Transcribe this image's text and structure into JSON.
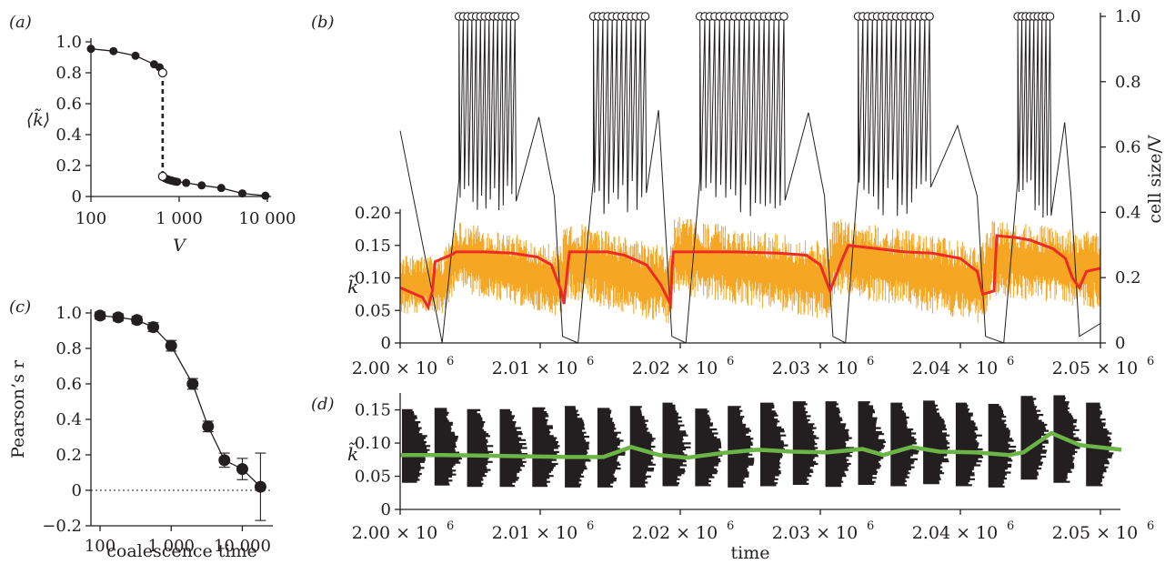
{
  "chart_data": [
    {
      "panel": "a",
      "type": "line",
      "panel_label": "(a)",
      "xlabel": "V",
      "ylabel": "⟨k̃⟩",
      "x_scale": "log",
      "xlim": [
        100,
        10000
      ],
      "ylim": [
        0,
        1.0
      ],
      "xticks": [
        "100",
        "1 000",
        "10 000"
      ],
      "yticks": [
        "0",
        "0.2",
        "0.4",
        "0.6",
        "0.8",
        "1.0"
      ],
      "upper_branch": {
        "x": [
          100,
          180,
          320,
          520,
          600,
          650
        ],
        "y": [
          0.955,
          0.94,
          0.91,
          0.855,
          0.835,
          0.8
        ],
        "open_endpoint": [
          650,
          0.8
        ]
      },
      "lower_branch": {
        "x": [
          650,
          680,
          710,
          740,
          770,
          800,
          830,
          860,
          900,
          950,
          1200,
          1800,
          3000,
          5200,
          9500
        ],
        "y": [
          0.13,
          0.12,
          0.115,
          0.11,
          0.107,
          0.105,
          0.102,
          0.1,
          0.097,
          0.095,
          0.088,
          0.072,
          0.055,
          0.02,
          0.005
        ],
        "open_endpoint": [
          650,
          0.13
        ]
      },
      "jump": {
        "x": 650,
        "y_from": 0.8,
        "y_to": 0.13,
        "style": "dashed"
      }
    },
    {
      "panel": "b",
      "type": "line",
      "panel_label": "(b)",
      "xlim": [
        2000000,
        2050000
      ],
      "xticks": [
        "2.00 × 10",
        "2.01 × 10",
        "2.02 × 10",
        "2.03 × 10",
        "2.04 × 10",
        "2.05 × 10"
      ],
      "xtick_exponent": "6",
      "ylabel_left": "k̃",
      "ylim_left": [
        0,
        0.2
      ],
      "yticks_left": [
        "0",
        "0.05",
        "0.10",
        "0.15",
        "0.20"
      ],
      "ylabel_right": "cell size/V",
      "ylim_right": [
        0,
        1.0
      ],
      "yticks_right": [
        "0",
        "0.2",
        "0.4",
        "0.6",
        "0.8",
        "1.0"
      ],
      "cycles": [
        {
          "start": 2000000,
          "growth_start": 2003000,
          "first_div": 2004200,
          "last_div": 2008200,
          "collapse": 2011600
        },
        {
          "start": 2011600,
          "growth_start": 2012700,
          "first_div": 2013800,
          "last_div": 2017500,
          "collapse": 2019400
        },
        {
          "start": 2019400,
          "growth_start": 2020400,
          "first_div": 2021400,
          "last_div": 2027400,
          "collapse": 2030900
        },
        {
          "start": 2030900,
          "growth_start": 2031800,
          "first_div": 2032700,
          "last_div": 2037800,
          "collapse": 2041800
        },
        {
          "start": 2041800,
          "growth_start": 2043100,
          "first_div": 2044100,
          "last_div": 2046400,
          "collapse": 2048500
        }
      ],
      "division_marker_counts": [
        14,
        12,
        18,
        16,
        9
      ],
      "series": [
        {
          "name": "",
          "axis": "left",
          "color": "#f5a623",
          "style": "noisy band",
          "x": [
            2000000,
            2003000,
            2004000,
            2011500,
            2011800,
            2019300,
            2019600,
            2030600,
            2031000,
            2041500,
            2042300,
            2050000
          ],
          "center": [
            0.09,
            0.09,
            0.135,
            0.095,
            0.13,
            0.085,
            0.135,
            0.095,
            0.135,
            0.09,
            0.13,
            0.11
          ],
          "spread": [
            0.045,
            0.045,
            0.055,
            0.055,
            0.06,
            0.06,
            0.06,
            0.06,
            0.06,
            0.06,
            0.06,
            0.06
          ]
        },
        {
          "name": "",
          "axis": "left",
          "color": "#ee2a24",
          "x": [
            2000000,
            2001600,
            2002000,
            2002300,
            2002500,
            2003600,
            2004000,
            2006000,
            2008000,
            2009800,
            2010800,
            2011500,
            2011700,
            2012000,
            2012100,
            2014800,
            2016000,
            2017600,
            2018600,
            2019300,
            2019400,
            2019500,
            2024000,
            2027000,
            2029000,
            2030000,
            2030700,
            2031500,
            2032000,
            2034000,
            2036000,
            2038000,
            2040000,
            2041200,
            2041600,
            2042400,
            2042600,
            2044000,
            2045000,
            2046600,
            2047500,
            2048000,
            2048500,
            2049000,
            2050000
          ],
          "y": [
            0.085,
            0.07,
            0.055,
            0.08,
            0.125,
            0.135,
            0.14,
            0.14,
            0.138,
            0.132,
            0.12,
            0.08,
            0.06,
            0.125,
            0.14,
            0.14,
            0.135,
            0.12,
            0.09,
            0.06,
            0.11,
            0.14,
            0.14,
            0.138,
            0.135,
            0.12,
            0.08,
            0.125,
            0.15,
            0.145,
            0.14,
            0.138,
            0.13,
            0.11,
            0.075,
            0.08,
            0.165,
            0.162,
            0.158,
            0.145,
            0.13,
            0.1,
            0.085,
            0.11,
            0.115
          ]
        },
        {
          "name": "",
          "axis": "right",
          "color": "#231f20",
          "style": "sawtooth growth/division cycles, max 1.0"
        }
      ]
    },
    {
      "panel": "c",
      "type": "scatter",
      "panel_label": "(c)",
      "xlabel": "coalescence time",
      "ylabel": "Pearson’s r",
      "x_scale": "log",
      "xlim": [
        100,
        20000
      ],
      "ylim": [
        -0.2,
        1.0
      ],
      "xticks": [
        "100",
        "1 000",
        "10 000"
      ],
      "yticks": [
        "−0.2",
        "0",
        "0.2",
        "0.4",
        "0.6",
        "0.8",
        "1.0"
      ],
      "x": [
        100,
        180,
        330,
        560,
        1000,
        2000,
        3300,
        5600,
        10000,
        18000
      ],
      "y": [
        0.985,
        0.975,
        0.96,
        0.92,
        0.815,
        0.6,
        0.36,
        0.17,
        0.12,
        0.02
      ],
      "error": [
        0.02,
        0.02,
        0.02,
        0.025,
        0.03,
        0.03,
        0.03,
        0.04,
        0.06,
        0.19
      ],
      "reference_line": {
        "y": 0,
        "style": "dotted"
      }
    },
    {
      "panel": "d",
      "type": "line",
      "panel_label": "(d)",
      "xlabel": "time",
      "ylabel": "k̃",
      "xlim": [
        2000000,
        2051500
      ],
      "ylim": [
        0,
        0.17
      ],
      "xticks": [
        "2.00 × 10",
        "2.01 × 10",
        "2.02 × 10",
        "2.03 × 10",
        "2.04 × 10",
        "2.05 × 10"
      ],
      "xtick_exponent": "6",
      "yticks": [
        "0",
        "0.05",
        "0.10",
        "0.15"
      ],
      "histogram_count": 22,
      "histograms": [
        {
          "center": 0.088,
          "spread": 0.048
        },
        {
          "center": 0.086,
          "spread": 0.05
        },
        {
          "center": 0.084,
          "spread": 0.05
        },
        {
          "center": 0.085,
          "spread": 0.051
        },
        {
          "center": 0.086,
          "spread": 0.052
        },
        {
          "center": 0.086,
          "spread": 0.053
        },
        {
          "center": 0.085,
          "spread": 0.052
        },
        {
          "center": 0.087,
          "spread": 0.054
        },
        {
          "center": 0.09,
          "spread": 0.055
        },
        {
          "center": 0.085,
          "spread": 0.05
        },
        {
          "center": 0.087,
          "spread": 0.054
        },
        {
          "center": 0.09,
          "spread": 0.055
        },
        {
          "center": 0.092,
          "spread": 0.055
        },
        {
          "center": 0.09,
          "spread": 0.056
        },
        {
          "center": 0.092,
          "spread": 0.055
        },
        {
          "center": 0.09,
          "spread": 0.055
        },
        {
          "center": 0.093,
          "spread": 0.055
        },
        {
          "center": 0.09,
          "spread": 0.055
        },
        {
          "center": 0.088,
          "spread": 0.055
        },
        {
          "center": 0.105,
          "spread": 0.06
        },
        {
          "center": 0.1,
          "spread": 0.06
        },
        {
          "center": 0.09,
          "spread": 0.055
        }
      ],
      "series": [
        {
          "name": "",
          "color": "#6ab545",
          "x": [
            2000000,
            2003000,
            2006000,
            2009000,
            2012000,
            2014500,
            2016500,
            2018500,
            2020500,
            2023000,
            2025500,
            2028000,
            2030500,
            2033000,
            2034500,
            2036500,
            2038500,
            2041000,
            2043500,
            2044500,
            2046500,
            2048500,
            2051500
          ],
          "y": [
            0.082,
            0.082,
            0.081,
            0.08,
            0.079,
            0.079,
            0.094,
            0.082,
            0.078,
            0.085,
            0.09,
            0.087,
            0.086,
            0.091,
            0.082,
            0.094,
            0.087,
            0.086,
            0.082,
            0.086,
            0.115,
            0.097,
            0.09
          ]
        }
      ]
    }
  ]
}
